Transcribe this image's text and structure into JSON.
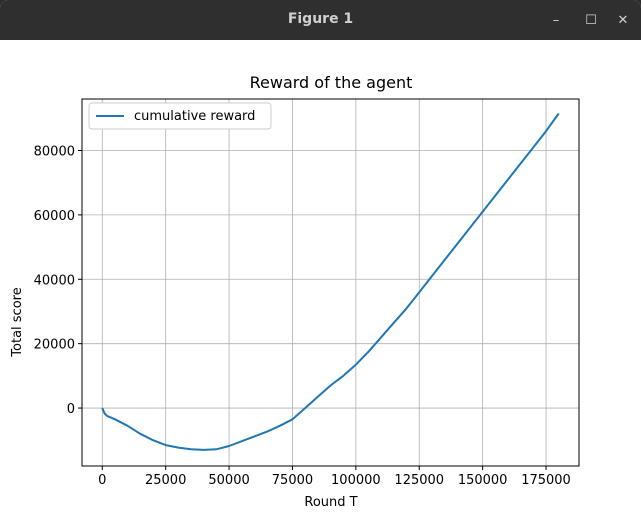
{
  "window": {
    "title": "Figure 1",
    "controls": {
      "minimize": "–",
      "maximize": "☐",
      "close": "✕"
    }
  },
  "chart_data": {
    "type": "line",
    "title": "Reward of the agent",
    "xlabel": "Round T",
    "ylabel": "Total score",
    "xlim": [
      -8000,
      188000
    ],
    "ylim": [
      -18000,
      96000
    ],
    "xticks": [
      0,
      25000,
      50000,
      75000,
      100000,
      125000,
      150000,
      175000
    ],
    "yticks": [
      0,
      20000,
      40000,
      60000,
      80000
    ],
    "grid": true,
    "legend_position": "upper-left",
    "series": [
      {
        "name": "cumulative reward",
        "color": "#1f77b4",
        "x": [
          0,
          1000,
          2000,
          5000,
          10000,
          15000,
          20000,
          25000,
          30000,
          35000,
          40000,
          45000,
          50000,
          55000,
          60000,
          65000,
          70000,
          75000,
          80000,
          85000,
          90000,
          95000,
          100000,
          105000,
          110000,
          115000,
          120000,
          125000,
          130000,
          135000,
          140000,
          145000,
          150000,
          155000,
          160000,
          165000,
          170000,
          175000,
          180000
        ],
        "y": [
          0,
          -1800,
          -2500,
          -3500,
          -5500,
          -8000,
          -10000,
          -11500,
          -12300,
          -12800,
          -13000,
          -12800,
          -11800,
          -10300,
          -8800,
          -7300,
          -5500,
          -3500,
          0,
          3500,
          7000,
          10000,
          13500,
          17500,
          22000,
          26500,
          31000,
          36000,
          41000,
          46000,
          51000,
          56000,
          61000,
          66000,
          71000,
          76000,
          81000,
          86000,
          91500
        ]
      }
    ]
  }
}
